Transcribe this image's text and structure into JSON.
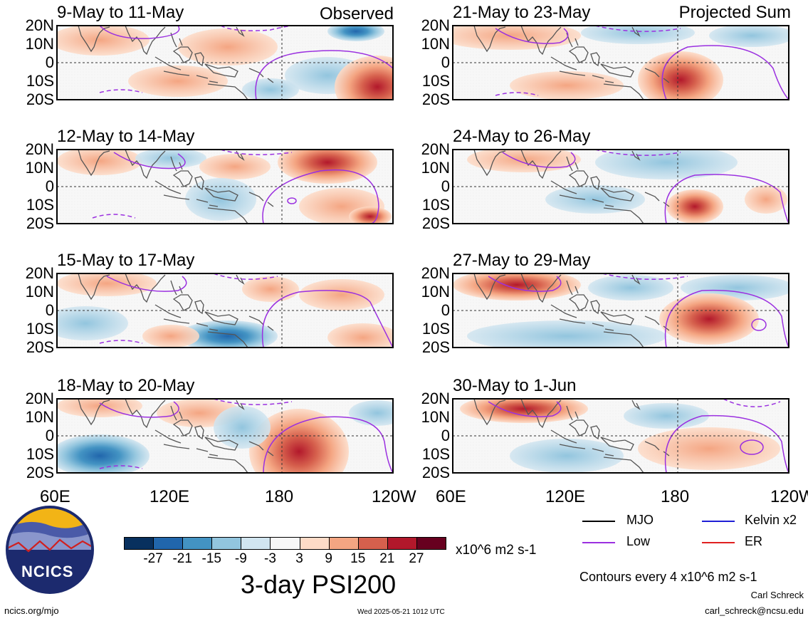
{
  "observed_label": "Observed",
  "projected_label": "Projected Sum",
  "panels_left": [
    {
      "title": "9-May to 11-May"
    },
    {
      "title": "12-May to 14-May"
    },
    {
      "title": "15-May to 17-May"
    },
    {
      "title": "18-May to 20-May"
    }
  ],
  "panels_right": [
    {
      "title": "21-May to 23-May"
    },
    {
      "title": "24-May to 26-May"
    },
    {
      "title": "27-May to 29-May"
    },
    {
      "title": "30-May to 1-Jun"
    }
  ],
  "lat_labels": [
    "20N",
    "10N",
    "0",
    "10S",
    "20S"
  ],
  "lon_labels": [
    "60E",
    "120E",
    "180",
    "120W"
  ],
  "legend": {
    "items": [
      {
        "label": "MJO",
        "color": "#000000"
      },
      {
        "label": "Kelvin x2",
        "color": "#1f1fd6"
      },
      {
        "label": "Low",
        "color": "#9b30e0"
      },
      {
        "label": "ER",
        "color": "#e02020"
      }
    ],
    "contours_note": "Contours every 4 x10^6 m2 s-1"
  },
  "colorbar": {
    "colors": [
      "#08305e",
      "#2166ac",
      "#4393c3",
      "#92c5de",
      "#d1e5f0",
      "#f7f7f7",
      "#fddbc7",
      "#f4a582",
      "#d6604d",
      "#b2182b",
      "#67001f"
    ],
    "ticks": [
      "-27",
      "-21",
      "-15",
      "-9",
      "-3",
      "3",
      "9",
      "15",
      "21",
      "27"
    ],
    "units": "x10^6 m2 s-1",
    "title": "3-day PSI200"
  },
  "logo_text": "NCICS",
  "footer": {
    "site": "ncics.org/mjo",
    "timestamp": "Wed 2025-05-21 1012 UTC",
    "author": "Carl Schreck",
    "email": "carl_schreck@ncsu.edu"
  }
}
